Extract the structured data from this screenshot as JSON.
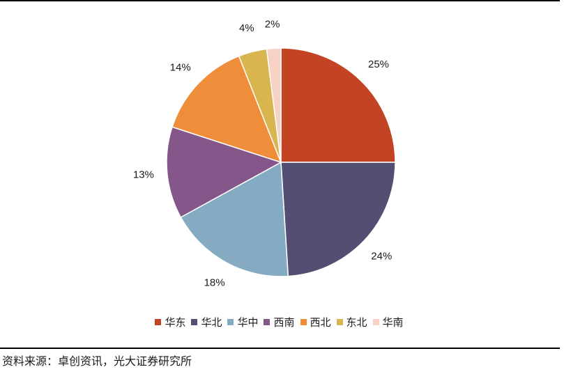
{
  "chart_data": {
    "type": "pie",
    "start_angle_deg": 0,
    "direction": "clockwise",
    "labels": [
      "华东",
      "华北",
      "华中",
      "西南",
      "西北",
      "东北",
      "华南"
    ],
    "values": [
      25,
      24,
      18,
      13,
      14,
      4,
      2
    ],
    "value_labels": [
      "25%",
      "24%",
      "18%",
      "13%",
      "14%",
      "4%",
      "2%"
    ],
    "colors": [
      "#C34424",
      "#544F72",
      "#84ABC1",
      "#84568A",
      "#EF8E3A",
      "#D9B550",
      "#F7D2C4"
    ],
    "legend_position": "bottom"
  },
  "legend": {
    "items": [
      {
        "label": "华东",
        "color": "#C34424"
      },
      {
        "label": "华北",
        "color": "#544F72"
      },
      {
        "label": "华中",
        "color": "#84ABC1"
      },
      {
        "label": "西南",
        "color": "#84568A"
      },
      {
        "label": "西北",
        "color": "#EF8E3A"
      },
      {
        "label": "东北",
        "color": "#D9B550"
      },
      {
        "label": "华南",
        "color": "#F7D2C4"
      }
    ]
  },
  "source": {
    "text": "资料来源：卓创资讯，光大证券研究所"
  }
}
